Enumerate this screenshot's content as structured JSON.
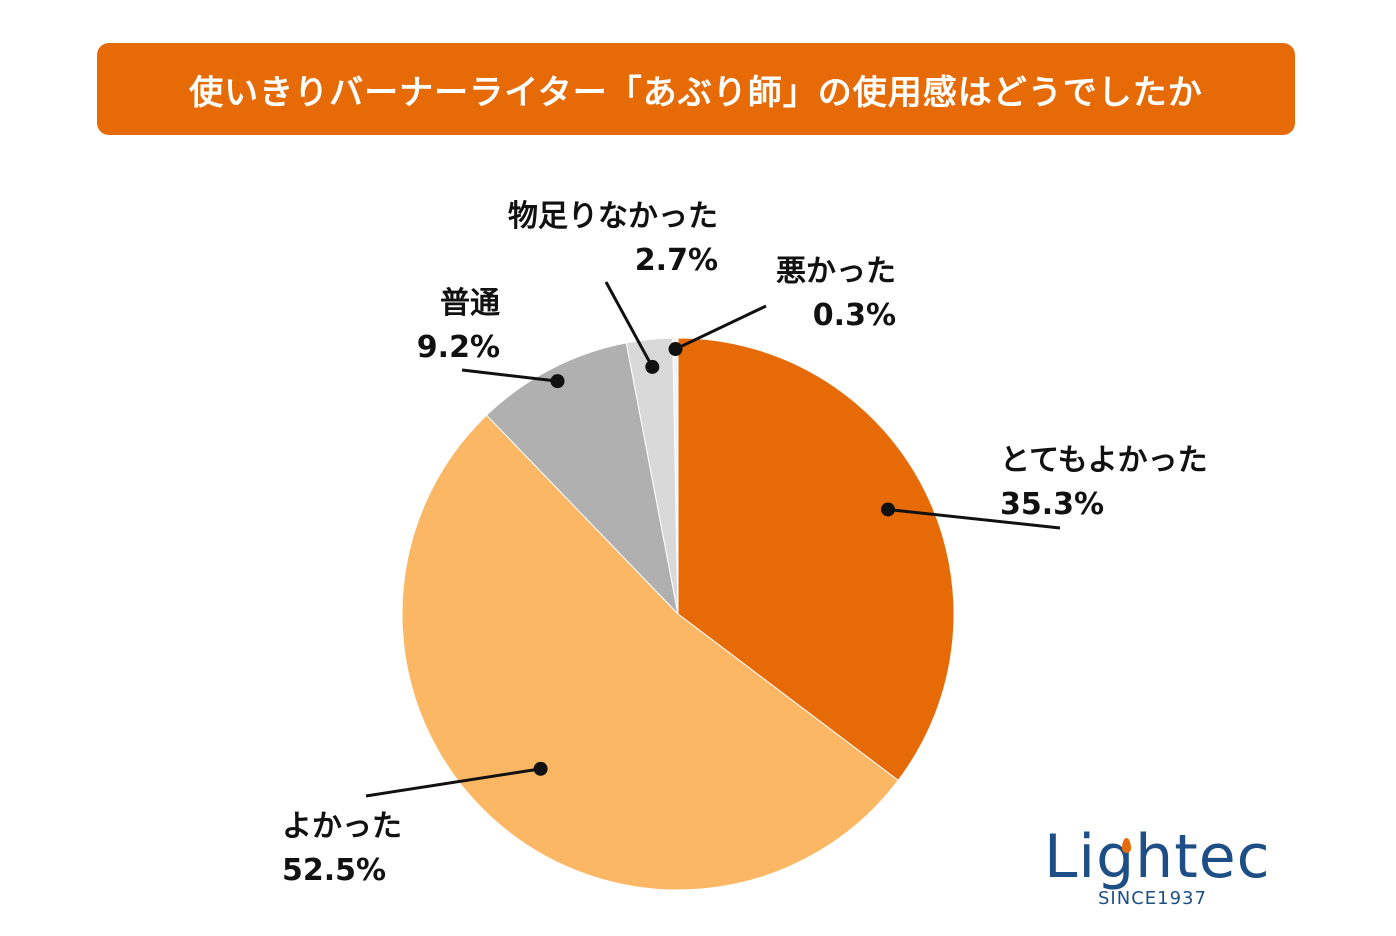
{
  "header": {
    "title": "使いきりバーナーライター「あぶり師」の使用感はどうでしたか"
  },
  "chart_data": {
    "type": "pie",
    "title": "使いきりバーナーライター「あぶり師」の使用感はどうでしたか",
    "start": "top",
    "direction": "clockwise",
    "slices": [
      {
        "label": "とてもよかった",
        "value": 35.3,
        "display": "35.3%",
        "color": "#e66a05"
      },
      {
        "label": "よかった",
        "value": 52.5,
        "display": "52.5%",
        "color": "#fcb764"
      },
      {
        "label": "普通",
        "value": 9.2,
        "display": "9.2%",
        "color": "#b0b0b0"
      },
      {
        "label": "物足りなかった",
        "value": 2.7,
        "display": "2.7%",
        "color": "#d9d9d9"
      },
      {
        "label": "悪かった",
        "value": 0.3,
        "display": "0.3%",
        "color": "#f2f2f2"
      }
    ]
  },
  "logo": {
    "name": "Lightec",
    "tagline": "SINCE1937"
  }
}
